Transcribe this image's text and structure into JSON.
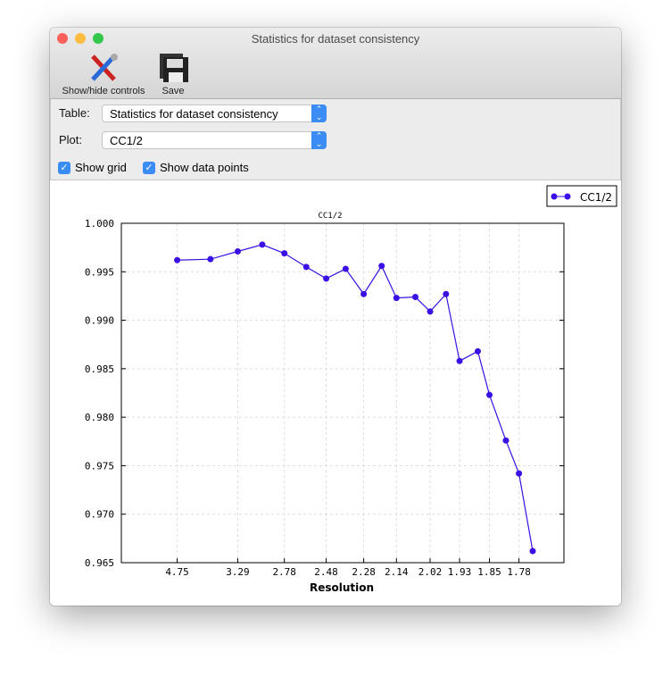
{
  "window": {
    "title": "Statistics for dataset consistency"
  },
  "toolbar": {
    "controls_label": "Show/hide controls",
    "save_label": "Save"
  },
  "controls": {
    "table_label": "Table:",
    "table_value": "Statistics for dataset consistency",
    "plot_label": "Plot:",
    "plot_value": "CC1/2",
    "show_grid_label": "Show grid",
    "show_grid": true,
    "show_points_label": "Show data points",
    "show_points": true
  },
  "colors": {
    "series": "#3a10e5",
    "close": "#fc605b",
    "minimize": "#fdbc40",
    "zoom": "#34c84a"
  },
  "chart_data": {
    "type": "line",
    "title": "CC1/2",
    "xlabel": "Resolution",
    "ylabel": "",
    "x_scale": "1/d^2 (reciprocal square)",
    "grid": true,
    "legend": "top-right",
    "x_ticks": [
      "4.75",
      "3.29",
      "2.78",
      "2.48",
      "2.28",
      "2.14",
      "2.02",
      "1.93",
      "1.85",
      "1.78"
    ],
    "y_ticks": [
      "1.000",
      "0.995",
      "0.990",
      "0.985",
      "0.980",
      "0.975",
      "0.970",
      "0.965"
    ],
    "ylim": [
      0.965,
      1.0
    ],
    "series": [
      {
        "name": "CC1/2",
        "x": [
          4.75,
          3.76,
          3.29,
          2.99,
          2.78,
          2.61,
          2.48,
          2.37,
          2.28,
          2.2,
          2.14,
          2.07,
          2.02,
          1.97,
          1.93,
          1.88,
          1.85,
          1.81,
          1.78,
          1.75
        ],
        "y": [
          0.9962,
          0.9963,
          0.9971,
          0.9978,
          0.9969,
          0.9955,
          0.9943,
          0.9953,
          0.9927,
          0.9956,
          0.9923,
          0.9924,
          0.9909,
          0.9927,
          0.9858,
          0.9868,
          0.9823,
          0.9776,
          0.9742,
          0.9662
        ]
      }
    ]
  }
}
